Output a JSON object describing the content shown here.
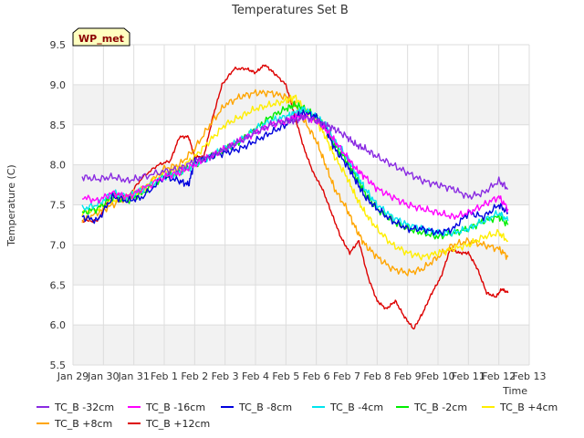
{
  "chart_data": {
    "type": "line",
    "title": "Temperatures Set B",
    "xlabel": "Time",
    "ylabel": "Temperature (C)",
    "station_badge": "WP_met",
    "ylim": [
      5.5,
      9.5
    ],
    "yticks": [
      "5.5",
      "6.0",
      "6.5",
      "7.0",
      "7.5",
      "8.0",
      "8.5",
      "9.0",
      "9.5"
    ],
    "xlim": [
      0,
      15
    ],
    "xticks": [
      "Jan 29",
      "Jan 30",
      "Jan 31",
      "Feb 1",
      "Feb 2",
      "Feb 3",
      "Feb 4",
      "Feb 5",
      "Feb 6",
      "Feb 7",
      "Feb 8",
      "Feb 9",
      "Feb 10",
      "Feb 11",
      "Feb 12",
      "Feb 13"
    ],
    "grid": true,
    "legend_position": "bottom",
    "series": [
      {
        "name": "TC_B -32cm",
        "color": "#8a2be2",
        "x": [
          0.3,
          0.8,
          1.3,
          1.8,
          2.3,
          3,
          3.5,
          4,
          4.5,
          5,
          5.5,
          6,
          6.5,
          7,
          7.3,
          7.6,
          8,
          8.3,
          8.6,
          9,
          9.3,
          9.6,
          10,
          10.5,
          11,
          11.5,
          12,
          12.5,
          13,
          13.5,
          14,
          14.3
        ],
        "y": [
          7.85,
          7.82,
          7.85,
          7.8,
          7.85,
          7.92,
          7.95,
          8.05,
          8.1,
          8.2,
          8.3,
          8.4,
          8.5,
          8.55,
          8.55,
          8.6,
          8.55,
          8.5,
          8.45,
          8.35,
          8.25,
          8.2,
          8.1,
          8.0,
          7.9,
          7.8,
          7.75,
          7.7,
          7.6,
          7.65,
          7.8,
          7.7
        ]
      },
      {
        "name": "TC_B -16cm",
        "color": "#ff00ff",
        "x": [
          0.3,
          0.8,
          1.3,
          1.8,
          2.3,
          3,
          3.5,
          4,
          4.5,
          5,
          5.5,
          6,
          6.5,
          7,
          7.3,
          7.6,
          8,
          8.3,
          8.6,
          9,
          9.3,
          9.6,
          10,
          10.5,
          11,
          11.5,
          12,
          12.5,
          13,
          13.5,
          14,
          14.3
        ],
        "y": [
          7.6,
          7.55,
          7.65,
          7.6,
          7.7,
          7.85,
          7.9,
          8.0,
          8.1,
          8.2,
          8.3,
          8.4,
          8.5,
          8.55,
          8.6,
          8.6,
          8.55,
          8.45,
          8.3,
          8.1,
          7.95,
          7.85,
          7.7,
          7.6,
          7.5,
          7.45,
          7.4,
          7.35,
          7.4,
          7.5,
          7.6,
          7.45
        ]
      },
      {
        "name": "TC_B -8cm",
        "color": "#0000dd",
        "x": [
          0.3,
          0.8,
          1.3,
          1.8,
          2.3,
          3,
          3.5,
          3.8,
          4,
          4.5,
          5,
          5.5,
          6,
          6.5,
          7,
          7.3,
          7.6,
          8,
          8.3,
          8.6,
          9,
          9.3,
          9.6,
          10,
          10.5,
          11,
          11.5,
          12,
          12.5,
          13,
          13.5,
          14,
          14.3
        ],
        "y": [
          7.35,
          7.3,
          7.6,
          7.55,
          7.6,
          7.85,
          7.8,
          7.75,
          8.05,
          8.1,
          8.15,
          8.2,
          8.3,
          8.4,
          8.5,
          8.6,
          8.65,
          8.6,
          8.45,
          8.2,
          8.0,
          7.8,
          7.6,
          7.45,
          7.3,
          7.2,
          7.2,
          7.15,
          7.2,
          7.4,
          7.35,
          7.5,
          7.4
        ]
      },
      {
        "name": "TC_B -4cm",
        "color": "#00e5ee",
        "x": [
          0.3,
          0.8,
          1.3,
          1.8,
          2.3,
          3,
          3.5,
          4,
          4.5,
          5,
          5.5,
          6,
          6.5,
          7,
          7.3,
          7.6,
          8,
          8.3,
          8.6,
          9,
          9.3,
          9.6,
          10,
          10.5,
          11,
          11.5,
          12,
          12.5,
          13,
          13.5,
          14,
          14.3
        ],
        "y": [
          7.45,
          7.5,
          7.65,
          7.6,
          7.7,
          7.85,
          7.9,
          8.0,
          8.1,
          8.2,
          8.3,
          8.45,
          8.55,
          8.6,
          8.65,
          8.7,
          8.6,
          8.5,
          8.3,
          8.1,
          7.9,
          7.7,
          7.5,
          7.35,
          7.25,
          7.2,
          7.15,
          7.15,
          7.2,
          7.3,
          7.4,
          7.3
        ]
      },
      {
        "name": "TC_B -2cm",
        "color": "#00ee00",
        "x": [
          0.3,
          0.8,
          1.3,
          1.8,
          2.3,
          3,
          3.5,
          4,
          4.5,
          5,
          5.5,
          6,
          6.5,
          7,
          7.3,
          7.6,
          8,
          8.3,
          8.6,
          9,
          9.3,
          9.6,
          10,
          10.5,
          11,
          11.5,
          12,
          12.5,
          13,
          13.5,
          14,
          14.3
        ],
        "y": [
          7.4,
          7.45,
          7.6,
          7.55,
          7.65,
          7.85,
          7.9,
          8.0,
          8.1,
          8.2,
          8.3,
          8.45,
          8.6,
          8.7,
          8.75,
          8.7,
          8.6,
          8.45,
          8.25,
          8.05,
          7.85,
          7.65,
          7.45,
          7.3,
          7.2,
          7.15,
          7.1,
          7.15,
          7.2,
          7.3,
          7.35,
          7.25
        ]
      },
      {
        "name": "TC_B +4cm",
        "color": "#ffee00",
        "x": [
          0.3,
          0.8,
          1.3,
          1.8,
          2.3,
          3,
          3.5,
          4,
          4.5,
          5,
          5.5,
          6,
          6.5,
          7,
          7.3,
          7.6,
          8,
          8.3,
          8.6,
          9,
          9.3,
          9.6,
          10,
          10.5,
          11,
          11.5,
          12,
          12.5,
          13,
          13.5,
          14,
          14.3
        ],
        "y": [
          7.4,
          7.45,
          7.55,
          7.6,
          7.7,
          7.9,
          7.95,
          8.1,
          8.3,
          8.5,
          8.6,
          8.7,
          8.75,
          8.8,
          8.85,
          8.7,
          8.55,
          8.35,
          8.1,
          7.85,
          7.6,
          7.4,
          7.2,
          7.0,
          6.9,
          6.85,
          6.9,
          6.95,
          7.0,
          7.1,
          7.15,
          7.05
        ]
      },
      {
        "name": "TC_B +8cm",
        "color": "#ffa500",
        "x": [
          0.3,
          0.8,
          1.3,
          1.8,
          2.3,
          3,
          3.5,
          4,
          4.5,
          5,
          5.5,
          6,
          6.5,
          7,
          7.3,
          7.6,
          8,
          8.3,
          8.6,
          9,
          9.3,
          9.6,
          10,
          10.5,
          11,
          11.5,
          12,
          12.5,
          13,
          13.5,
          14,
          14.3
        ],
        "y": [
          7.3,
          7.4,
          7.5,
          7.6,
          7.7,
          7.95,
          8.0,
          8.2,
          8.5,
          8.75,
          8.85,
          8.9,
          8.9,
          8.85,
          8.75,
          8.55,
          8.3,
          8.0,
          7.7,
          7.45,
          7.2,
          7.0,
          6.85,
          6.7,
          6.65,
          6.7,
          6.85,
          7.0,
          7.05,
          7.0,
          6.95,
          6.85
        ]
      },
      {
        "name": "TC_B +12cm",
        "color": "#dd0000",
        "x": [
          0.3,
          0.8,
          1.3,
          1.8,
          2.3,
          2.8,
          3.2,
          3.5,
          3.8,
          4,
          4.3,
          4.6,
          4.9,
          5.3,
          5.7,
          6,
          6.3,
          6.6,
          7,
          7.3,
          7.6,
          7.9,
          8.2,
          8.5,
          8.8,
          9.1,
          9.4,
          9.7,
          10,
          10.3,
          10.6,
          10.9,
          11.2,
          11.5,
          11.8,
          12.1,
          12.4,
          12.7,
          13,
          13.3,
          13.6,
          13.9,
          14.1,
          14.3
        ],
        "y": [
          7.3,
          7.3,
          7.65,
          7.6,
          7.85,
          8.0,
          8.05,
          8.35,
          8.35,
          8.1,
          8.1,
          8.6,
          9.0,
          9.2,
          9.2,
          9.15,
          9.25,
          9.15,
          9.0,
          8.6,
          8.2,
          7.9,
          7.7,
          7.4,
          7.1,
          6.9,
          7.05,
          6.6,
          6.3,
          6.2,
          6.3,
          6.1,
          5.95,
          6.15,
          6.4,
          6.6,
          6.95,
          6.9,
          6.9,
          6.7,
          6.4,
          6.35,
          6.45,
          6.4
        ]
      }
    ]
  }
}
